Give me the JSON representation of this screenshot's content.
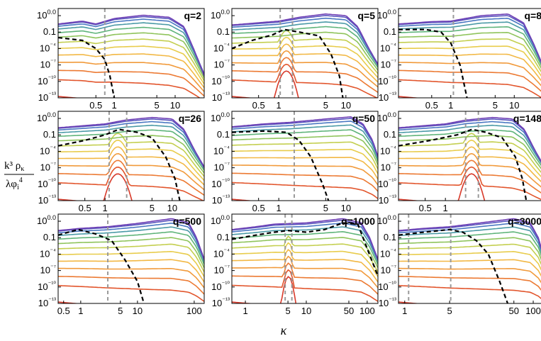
{
  "ylabel": {
    "numerator": "k³ ρ",
    "numerator_sub": "κ",
    "denominator": "λφ",
    "denominator_sub": "i",
    "denominator_sup": "4"
  },
  "xlabel": "κ",
  "y_ticks": [
    "100.0",
    "0.1",
    "10⁻⁴",
    "10⁻⁷",
    "10⁻¹⁰",
    "10⁻¹³"
  ],
  "colors": {
    "spectrum": [
      "#d83a2a",
      "#e2552c",
      "#ec7a33",
      "#f19a3b",
      "#f2b845",
      "#e8cc4c",
      "#c4cf50",
      "#8fc45c",
      "#5fb47a",
      "#4a9aa6",
      "#4a78c2",
      "#5a56be",
      "#6f3fb5"
    ],
    "dashed": "#000000",
    "vline": "#9a9a9a"
  },
  "chart_data": [
    {
      "type": "line",
      "title": "q=2",
      "xscale": "log",
      "yscale": "log",
      "xlim": [
        0.12,
        30
      ],
      "ylim": [
        1e-13,
        2000
      ],
      "x_ticks": [
        "0.5",
        "1",
        "5",
        "10"
      ],
      "x_tick_values": [
        0.5,
        1,
        5,
        10
      ],
      "vlines": [
        0.7
      ],
      "dashed_series": [
        [
          0.12,
          0.01
        ],
        [
          0.3,
          0.003
        ],
        [
          0.5,
          0.0001
        ],
        [
          0.7,
          1e-06
        ],
        [
          0.85,
          1e-09
        ],
        [
          1.0,
          1e-13
        ]
      ],
      "top_envelope": [
        [
          0.12,
          3
        ],
        [
          0.3,
          10
        ],
        [
          0.5,
          3
        ],
        [
          1,
          30
        ],
        [
          3,
          120
        ],
        [
          8,
          50
        ],
        [
          14,
          1
        ],
        [
          20,
          0.0001
        ],
        [
          30,
          1e-09
        ]
      ],
      "peak": null
    },
    {
      "type": "line",
      "title": "q=5",
      "xscale": "log",
      "yscale": "log",
      "xlim": [
        0.2,
        30
      ],
      "ylim": [
        1e-13,
        2000
      ],
      "x_ticks": [
        "0.5",
        "1",
        "5",
        "10"
      ],
      "x_tick_values": [
        0.5,
        1,
        5,
        10
      ],
      "vlines": [
        1.05,
        1.6
      ],
      "dashed_series": [
        [
          0.2,
          0.0001
        ],
        [
          0.4,
          0.003
        ],
        [
          0.8,
          0.03
        ],
        [
          1.2,
          0.3
        ],
        [
          2,
          0.1
        ],
        [
          4,
          0.02
        ],
        [
          6,
          1e-05
        ],
        [
          8,
          1e-09
        ],
        [
          9,
          1e-13
        ]
      ],
      "top_envelope": [
        [
          0.2,
          2
        ],
        [
          0.5,
          5
        ],
        [
          1,
          10
        ],
        [
          2,
          50
        ],
        [
          5,
          200
        ],
        [
          10,
          100
        ],
        [
          15,
          1
        ],
        [
          22,
          0.0001
        ],
        [
          30,
          1e-07
        ]
      ],
      "peak": {
        "x": 1.3,
        "y": 1,
        "width": 0.12
      }
    },
    {
      "type": "line",
      "title": "q=8",
      "xscale": "log",
      "yscale": "log",
      "xlim": [
        0.15,
        30
      ],
      "ylim": [
        1e-13,
        2000
      ],
      "x_ticks": [
        "0.5",
        "1",
        "5",
        "10"
      ],
      "x_tick_values": [
        0.5,
        1,
        5,
        10
      ],
      "vlines": [
        1.1
      ],
      "dashed_series": [
        [
          0.15,
          0.3
        ],
        [
          0.4,
          0.3
        ],
        [
          0.7,
          0.1
        ],
        [
          1,
          0.001
        ],
        [
          1.4,
          1e-07
        ],
        [
          1.8,
          1e-13
        ]
      ],
      "top_envelope": [
        [
          0.15,
          3
        ],
        [
          0.5,
          8
        ],
        [
          1,
          10
        ],
        [
          3,
          100
        ],
        [
          8,
          200
        ],
        [
          14,
          5
        ],
        [
          20,
          0.001
        ],
        [
          30,
          1e-08
        ]
      ],
      "peak": null
    },
    {
      "type": "line",
      "title": "q=26",
      "xscale": "log",
      "yscale": "log",
      "xlim": [
        0.2,
        30
      ],
      "ylim": [
        1e-13,
        2000
      ],
      "x_ticks": [
        "0.5",
        "1",
        "5",
        "10"
      ],
      "x_tick_values": [
        0.5,
        1,
        5,
        10
      ],
      "vlines": [
        1.15,
        2.1
      ],
      "dashed_series": [
        [
          0.2,
          0.001
        ],
        [
          0.5,
          0.01
        ],
        [
          1,
          0.1
        ],
        [
          1.6,
          1
        ],
        [
          3,
          0.3
        ],
        [
          5,
          0.03
        ],
        [
          8,
          1e-05
        ],
        [
          11,
          1e-09
        ],
        [
          13,
          1e-13
        ]
      ],
      "top_envelope": [
        [
          0.2,
          2
        ],
        [
          0.5,
          5
        ],
        [
          1,
          10
        ],
        [
          2,
          50
        ],
        [
          5,
          150
        ],
        [
          10,
          80
        ],
        [
          15,
          1
        ],
        [
          22,
          0.0001
        ],
        [
          30,
          1e-07
        ]
      ],
      "peak": {
        "x": 1.55,
        "y": 1,
        "width": 0.14
      }
    },
    {
      "type": "line",
      "title": "q=50",
      "xscale": "log",
      "yscale": "log",
      "xlim": [
        0.2,
        30
      ],
      "ylim": [
        1e-13,
        2000
      ],
      "x_ticks": [
        "0.5",
        "1",
        "5",
        "10"
      ],
      "x_tick_values": [
        0.5,
        1,
        5,
        10
      ],
      "vlines": [
        1.7
      ],
      "dashed_series": [
        [
          0.2,
          0.3
        ],
        [
          0.6,
          0.5
        ],
        [
          1.3,
          0.3
        ],
        [
          2,
          0.01
        ],
        [
          3,
          1e-05
        ],
        [
          4.5,
          1e-10
        ],
        [
          5.5,
          1e-13
        ]
      ],
      "top_envelope": [
        [
          0.2,
          3
        ],
        [
          0.6,
          10
        ],
        [
          1.5,
          20
        ],
        [
          5,
          80
        ],
        [
          12,
          200
        ],
        [
          18,
          10
        ],
        [
          25,
          0.01
        ],
        [
          30,
          1e-05
        ]
      ],
      "peak": null
    },
    {
      "type": "line",
      "title": "q=148",
      "xscale": "log",
      "yscale": "log",
      "xlim": [
        0.2,
        30
      ],
      "ylim": [
        1e-13,
        2000
      ],
      "x_ticks": [
        "0.5",
        "1"
      ],
      "x_tick_values": [
        0.5,
        1
      ],
      "vlines": [
        2.0,
        3.1
      ],
      "dashed_series": [
        [
          0.2,
          0.001
        ],
        [
          0.6,
          0.01
        ],
        [
          1.5,
          0.1
        ],
        [
          2.5,
          1
        ],
        [
          4,
          0.3
        ],
        [
          7,
          0.03
        ],
        [
          11,
          1e-05
        ],
        [
          14,
          1e-09
        ],
        [
          16,
          1e-13
        ]
      ],
      "top_envelope": [
        [
          0.2,
          2
        ],
        [
          0.5,
          5
        ],
        [
          1,
          10
        ],
        [
          2,
          50
        ],
        [
          5,
          150
        ],
        [
          10,
          80
        ],
        [
          15,
          1
        ],
        [
          22,
          0.0001
        ],
        [
          30,
          1e-07
        ]
      ],
      "peak": {
        "x": 2.45,
        "y": 1,
        "width": 0.13
      }
    },
    {
      "type": "line",
      "title": "q=500",
      "xscale": "log",
      "yscale": "log",
      "xlim": [
        0.4,
        150
      ],
      "ylim": [
        1e-13,
        2000
      ],
      "x_ticks": [
        "0.5",
        "1",
        "5",
        "10",
        "100"
      ],
      "x_tick_values": [
        0.5,
        1,
        5,
        10,
        100
      ],
      "vlines": [
        3.0
      ],
      "dashed_series": [
        [
          0.4,
          0.3
        ],
        [
          0.9,
          3
        ],
        [
          1.8,
          0.5
        ],
        [
          3.5,
          0.03
        ],
        [
          6,
          1e-05
        ],
        [
          10,
          1e-09
        ],
        [
          13,
          1e-13
        ]
      ],
      "top_envelope": [
        [
          0.4,
          2
        ],
        [
          1,
          5
        ],
        [
          3,
          10
        ],
        [
          10,
          40
        ],
        [
          40,
          300
        ],
        [
          80,
          50
        ],
        [
          110,
          0.1
        ],
        [
          150,
          1e-05
        ]
      ],
      "peak": null
    },
    {
      "type": "line",
      "title": "q=1000",
      "xscale": "log",
      "yscale": "log",
      "xlim": [
        0.6,
        150
      ],
      "ylim": [
        1e-13,
        2000
      ],
      "x_ticks": [
        "1",
        "5",
        "10",
        "50",
        "100"
      ],
      "x_tick_values": [
        1,
        5,
        10,
        50,
        100
      ],
      "vlines": [
        4.5,
        5.8
      ],
      "dashed_series": [
        [
          0.6,
          0.05
        ],
        [
          1.5,
          0.3
        ],
        [
          3,
          1
        ],
        [
          5,
          2
        ],
        [
          10,
          1
        ],
        [
          20,
          3
        ],
        [
          40,
          50
        ],
        [
          70,
          30
        ],
        [
          100,
          0.001
        ],
        [
          150,
          1e-08
        ]
      ],
      "top_envelope": [
        [
          0.6,
          3
        ],
        [
          1.5,
          10
        ],
        [
          3,
          30
        ],
        [
          10,
          50
        ],
        [
          40,
          300
        ],
        [
          80,
          50
        ],
        [
          110,
          0.1
        ],
        [
          150,
          1e-05
        ]
      ],
      "peak": {
        "x": 5.1,
        "y": 1,
        "width": 0.08
      }
    },
    {
      "type": "line",
      "title": "q=3000",
      "xscale": "log",
      "yscale": "log",
      "xlim": [
        0.8,
        150
      ],
      "ylim": [
        1e-13,
        2000
      ],
      "x_ticks": [
        "1",
        "5",
        "50",
        "100"
      ],
      "x_tick_values": [
        1,
        5,
        50,
        100
      ],
      "vlines": [
        1.15,
        5.2
      ],
      "dashed_series": [
        [
          0.8,
          0.3
        ],
        [
          2,
          1
        ],
        [
          5,
          3
        ],
        [
          8,
          1
        ],
        [
          13,
          0.03
        ],
        [
          20,
          0.0001
        ],
        [
          30,
          1e-09
        ],
        [
          40,
          1e-13
        ]
      ],
      "top_envelope": [
        [
          0.8,
          2
        ],
        [
          2,
          5
        ],
        [
          5,
          10
        ],
        [
          15,
          50
        ],
        [
          50,
          300
        ],
        [
          90,
          50
        ],
        [
          120,
          0.1
        ],
        [
          150,
          1e-05
        ]
      ],
      "peak": null
    }
  ]
}
